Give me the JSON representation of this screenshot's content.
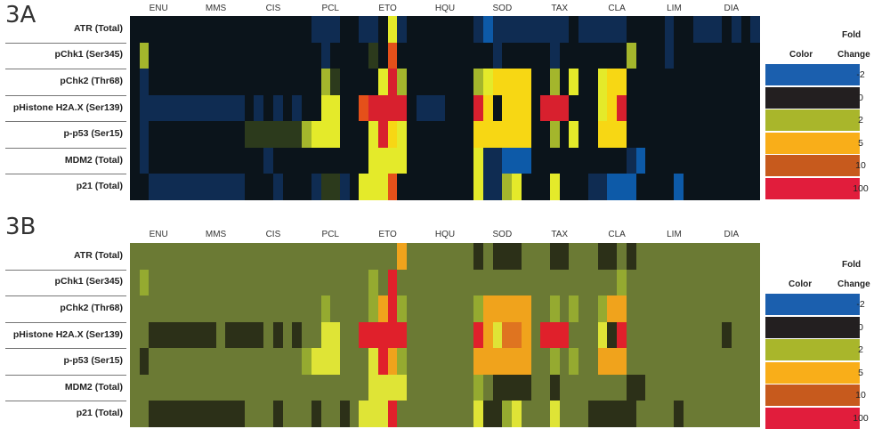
{
  "panels": [
    {
      "label": "3A",
      "scheme": "A",
      "columns": [
        "ENU",
        "MMS",
        "CIS",
        "PCL",
        "ETO",
        "HQU",
        "SOD",
        "TAX",
        "CLA",
        "LIM",
        "DIA"
      ],
      "rows": [
        "ATR (Total)",
        "pChk1 (Ser345)",
        "pChk2 (Thr68)",
        "pHistone H2A.X (Ser139)",
        "p-p53 (Ser15)",
        "MDM2 (Total)",
        "p21 (Total)"
      ],
      "legend": {
        "color_header": "Color",
        "fold_header": "Fold",
        "change_header": "Change"
      }
    },
    {
      "label": "3B",
      "scheme": "B",
      "columns": [
        "ENU",
        "MMS",
        "CIS",
        "PCL",
        "ETO",
        "HQU",
        "SOD",
        "TAX",
        "CLA",
        "LIM",
        "DIA"
      ],
      "rows": [
        "ATR (Total)",
        "pChk1 (Ser345)",
        "pChk2 (Thr68)",
        "pHistone H2A.X (Ser139)",
        "p-p53 (Ser15)",
        "MDM2 (Total)",
        "p21 (Total)"
      ],
      "legend": {
        "color_header": "Color",
        "fold_header": "Fold",
        "change_header": "Change"
      }
    }
  ],
  "legend_scale": [
    {
      "value": "-2",
      "color": "#1b5fae"
    },
    {
      "value": "0",
      "color": "#231f20"
    },
    {
      "value": "2",
      "color": "#a9b62b"
    },
    {
      "value": "5",
      "color": "#f9ae19"
    },
    {
      "value": "10",
      "color": "#c75a1d"
    },
    {
      "value": "100",
      "color": "#e11d3c"
    }
  ],
  "chart_data": [
    {
      "type": "heatmap",
      "panel": "3A",
      "columns": [
        "ENU",
        "MMS",
        "CIS",
        "PCL",
        "ETO",
        "HQU",
        "SOD",
        "TAX",
        "CLA",
        "LIM",
        "DIA"
      ],
      "sub_columns_per_group": 6,
      "rows": [
        "ATR (Total)",
        "pChk1 (Ser345)",
        "pChk2 (Thr68)",
        "pHistone H2A.X (Ser139)",
        "p-p53 (Ser15)",
        "MDM2 (Total)",
        "p21 (Total)"
      ],
      "values": [
        [
          0,
          0,
          0,
          0,
          0,
          0,
          0,
          0,
          0,
          0,
          0,
          0,
          0,
          0,
          0,
          0,
          0,
          0,
          0,
          -1,
          -1,
          -1,
          0,
          0,
          -1,
          -1,
          0,
          3,
          -1,
          0,
          0,
          0,
          0,
          0,
          0,
          0,
          -1,
          -2,
          -1,
          -1,
          -1,
          -1,
          -1,
          -1,
          -1,
          -1,
          0,
          -1,
          -1,
          -1,
          -1,
          -1,
          0,
          0,
          0,
          0,
          -1,
          0,
          0,
          -1,
          -1,
          -1,
          0,
          -1,
          0,
          -1
        ],
        [
          0,
          2,
          0,
          0,
          0,
          0,
          0,
          0,
          0,
          0,
          0,
          0,
          0,
          0,
          0,
          0,
          0,
          0,
          0,
          0,
          -1,
          0,
          0,
          0,
          0,
          1,
          0,
          9,
          0,
          0,
          0,
          0,
          0,
          0,
          0,
          0,
          0,
          0,
          -1,
          0,
          0,
          0,
          0,
          0,
          -1,
          0,
          0,
          0,
          0,
          0,
          0,
          0,
          2,
          0,
          0,
          0,
          -1,
          0,
          0,
          0,
          0,
          0,
          0,
          0,
          0,
          0
        ],
        [
          0,
          -1,
          0,
          0,
          0,
          0,
          0,
          0,
          0,
          0,
          0,
          0,
          0,
          0,
          0,
          0,
          0,
          0,
          0,
          0,
          2,
          1,
          0,
          0,
          0,
          0,
          3,
          100,
          2,
          0,
          0,
          0,
          0,
          0,
          0,
          0,
          2,
          3,
          5,
          5,
          5,
          5,
          0,
          0,
          2,
          0,
          3,
          0,
          0,
          3,
          5,
          5,
          0,
          0,
          0,
          0,
          0,
          0,
          0,
          0,
          0,
          0,
          0,
          0,
          0,
          0
        ],
        [
          0,
          -1,
          -1,
          -1,
          -1,
          -1,
          -1,
          -1,
          -1,
          -1,
          -1,
          -1,
          0,
          -1,
          0,
          -1,
          0,
          -1,
          0,
          0,
          3,
          3,
          0,
          0,
          9,
          100,
          100,
          100,
          100,
          0,
          -1,
          -1,
          -1,
          0,
          0,
          0,
          100,
          5,
          0,
          5,
          5,
          5,
          0,
          100,
          100,
          100,
          0,
          0,
          0,
          3,
          5,
          100,
          0,
          0,
          0,
          0,
          0,
          0,
          0,
          0,
          0,
          0,
          0,
          0,
          0,
          0
        ],
        [
          0,
          -1,
          0,
          0,
          0,
          0,
          0,
          0,
          0,
          0,
          0,
          0,
          1,
          1,
          1,
          1,
          1,
          1,
          2,
          3,
          3,
          3,
          0,
          0,
          0,
          3,
          100,
          4,
          3,
          0,
          0,
          0,
          0,
          0,
          0,
          0,
          5,
          5,
          5,
          5,
          5,
          5,
          0,
          0,
          2,
          0,
          3,
          0,
          0,
          5,
          5,
          5,
          0,
          0,
          0,
          0,
          0,
          0,
          0,
          0,
          0,
          0,
          0,
          0,
          0,
          0
        ],
        [
          0,
          -1,
          0,
          0,
          0,
          0,
          0,
          0,
          0,
          0,
          0,
          0,
          0,
          0,
          -1,
          0,
          0,
          0,
          0,
          0,
          0,
          0,
          0,
          0,
          0,
          3,
          3,
          3,
          3,
          0,
          0,
          0,
          0,
          0,
          0,
          0,
          3,
          -1,
          -1,
          -2,
          -2,
          -2,
          0,
          0,
          0,
          0,
          0,
          0,
          0,
          0,
          0,
          0,
          -1,
          -2,
          0,
          0,
          0,
          0,
          0,
          0,
          0,
          0,
          0,
          0,
          0,
          0
        ],
        [
          0,
          0,
          -1,
          -1,
          -1,
          -1,
          -1,
          -1,
          -1,
          -1,
          -1,
          -1,
          0,
          0,
          0,
          -1,
          0,
          0,
          0,
          -1,
          1,
          1,
          -1,
          0,
          3,
          3,
          3,
          9,
          0,
          0,
          0,
          0,
          0,
          0,
          0,
          0,
          3,
          -1,
          -1,
          2,
          3,
          0,
          0,
          0,
          3,
          0,
          0,
          0,
          -1,
          -1,
          -2,
          -2,
          -2,
          0,
          0,
          0,
          0,
          -2,
          0,
          0,
          0,
          0,
          0,
          0,
          0,
          0
        ]
      ],
      "scale_values": [
        -2,
        0,
        2,
        5,
        10,
        100
      ]
    },
    {
      "type": "heatmap",
      "panel": "3B",
      "columns": [
        "ENU",
        "MMS",
        "CIS",
        "PCL",
        "ETO",
        "HQU",
        "SOD",
        "TAX",
        "CLA",
        "LIM",
        "DIA"
      ],
      "sub_columns_per_group": 6,
      "rows": [
        "ATR (Total)",
        "pChk1 (Ser345)",
        "pChk2 (Thr68)",
        "pHistone H2A.X (Ser139)",
        "p-p53 (Ser15)",
        "MDM2 (Total)",
        "p21 (Total)"
      ],
      "values": [
        [
          1,
          1,
          1,
          1,
          1,
          1,
          1,
          1,
          1,
          1,
          1,
          1,
          1,
          1,
          1,
          1,
          1,
          1,
          1,
          1,
          1,
          1,
          1,
          1,
          1,
          1,
          1,
          1,
          5,
          1,
          1,
          1,
          1,
          1,
          1,
          1,
          0,
          1,
          0,
          0,
          0,
          1,
          1,
          1,
          0,
          0,
          1,
          1,
          1,
          0,
          0,
          1,
          0,
          1,
          1,
          1,
          1,
          1,
          1,
          1,
          1,
          1,
          1,
          1,
          1,
          1
        ],
        [
          1,
          2,
          1,
          1,
          1,
          1,
          1,
          1,
          1,
          1,
          1,
          1,
          1,
          1,
          1,
          1,
          1,
          1,
          1,
          1,
          1,
          1,
          1,
          1,
          1,
          2,
          1,
          100,
          1,
          1,
          1,
          1,
          1,
          1,
          1,
          1,
          1,
          1,
          1,
          1,
          1,
          1,
          1,
          1,
          1,
          1,
          1,
          1,
          1,
          1,
          1,
          2,
          1,
          1,
          1,
          1,
          1,
          1,
          1,
          1,
          1,
          1,
          1,
          1,
          1,
          1
        ],
        [
          1,
          1,
          1,
          1,
          1,
          1,
          1,
          1,
          1,
          1,
          1,
          1,
          1,
          1,
          1,
          1,
          1,
          1,
          1,
          1,
          2,
          1,
          1,
          1,
          1,
          2,
          5,
          100,
          2,
          1,
          1,
          1,
          1,
          1,
          1,
          1,
          2,
          5,
          5,
          5,
          5,
          5,
          1,
          1,
          2,
          1,
          2,
          1,
          1,
          2,
          5,
          5,
          1,
          1,
          1,
          1,
          1,
          1,
          1,
          1,
          1,
          1,
          1,
          1,
          1,
          1
        ],
        [
          1,
          1,
          0,
          0,
          0,
          0,
          0,
          0,
          0,
          1,
          0,
          0,
          0,
          0,
          1,
          0,
          1,
          0,
          1,
          1,
          3,
          3,
          1,
          1,
          100,
          100,
          100,
          100,
          100,
          1,
          1,
          1,
          1,
          1,
          1,
          1,
          100,
          5,
          3,
          10,
          10,
          5,
          1,
          100,
          100,
          100,
          1,
          1,
          1,
          3,
          0,
          100,
          1,
          1,
          1,
          1,
          1,
          1,
          1,
          1,
          1,
          1,
          0,
          1,
          1,
          1
        ],
        [
          1,
          0,
          1,
          1,
          1,
          1,
          1,
          1,
          1,
          1,
          1,
          1,
          1,
          1,
          1,
          1,
          1,
          1,
          2,
          3,
          3,
          3,
          1,
          1,
          1,
          3,
          100,
          5,
          2,
          1,
          1,
          1,
          1,
          1,
          1,
          1,
          5,
          5,
          5,
          5,
          5,
          5,
          1,
          1,
          2,
          1,
          2,
          1,
          1,
          5,
          5,
          5,
          1,
          1,
          1,
          1,
          1,
          1,
          1,
          1,
          1,
          1,
          1,
          1,
          1,
          1
        ],
        [
          1,
          1,
          1,
          1,
          1,
          1,
          1,
          1,
          1,
          1,
          1,
          1,
          1,
          1,
          1,
          1,
          1,
          1,
          1,
          1,
          1,
          1,
          1,
          1,
          1,
          3,
          3,
          3,
          3,
          1,
          1,
          1,
          1,
          1,
          1,
          1,
          2,
          1,
          0,
          0,
          0,
          0,
          1,
          1,
          0,
          1,
          1,
          1,
          1,
          1,
          1,
          1,
          0,
          0,
          1,
          1,
          1,
          1,
          1,
          1,
          1,
          1,
          1,
          1,
          1,
          1
        ],
        [
          1,
          1,
          0,
          0,
          0,
          0,
          0,
          0,
          0,
          0,
          0,
          0,
          1,
          1,
          1,
          0,
          1,
          1,
          1,
          0,
          1,
          1,
          0,
          1,
          3,
          3,
          3,
          100,
          1,
          1,
          1,
          1,
          1,
          1,
          1,
          1,
          3,
          0,
          0,
          2,
          3,
          1,
          1,
          1,
          3,
          1,
          1,
          1,
          0,
          0,
          0,
          0,
          0,
          1,
          1,
          1,
          1,
          0,
          1,
          1,
          1,
          1,
          1,
          1,
          1,
          1
        ]
      ],
      "scale_values": [
        -2,
        0,
        2,
        5,
        10,
        100
      ]
    }
  ]
}
